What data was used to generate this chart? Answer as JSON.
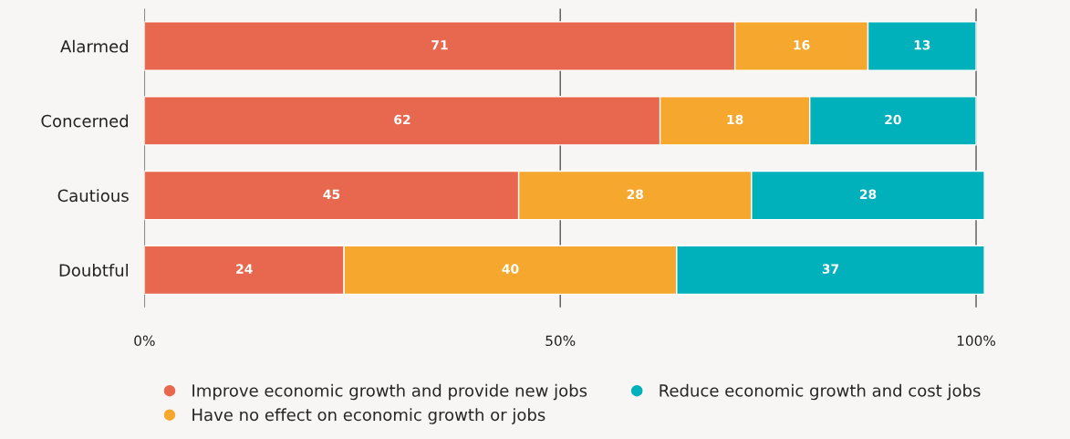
{
  "chart_data": {
    "type": "bar",
    "orientation": "horizontal",
    "stacked": true,
    "categories": [
      "Alarmed",
      "Concerned",
      "Cautious",
      "Doubtful"
    ],
    "series": [
      {
        "name": "Improve economic growth and provide new jobs",
        "color": "#e8684f",
        "values": [
          71,
          62,
          45,
          24
        ]
      },
      {
        "name": "Have no effect on economic growth or jobs",
        "color": "#f5a82d",
        "values": [
          16,
          18,
          28,
          40
        ]
      },
      {
        "name": "Reduce economic growth and cost jobs",
        "color": "#00b0bb",
        "values": [
          13,
          20,
          28,
          37
        ]
      }
    ],
    "xlim": [
      0,
      101
    ],
    "xticks": [
      {
        "value": 0,
        "label": "0%"
      },
      {
        "value": 50,
        "label": "50%"
      },
      {
        "value": 100,
        "label": "100%"
      }
    ],
    "grid": "x",
    "legend": "bottom",
    "data_labels": true,
    "marker": "circle"
  }
}
